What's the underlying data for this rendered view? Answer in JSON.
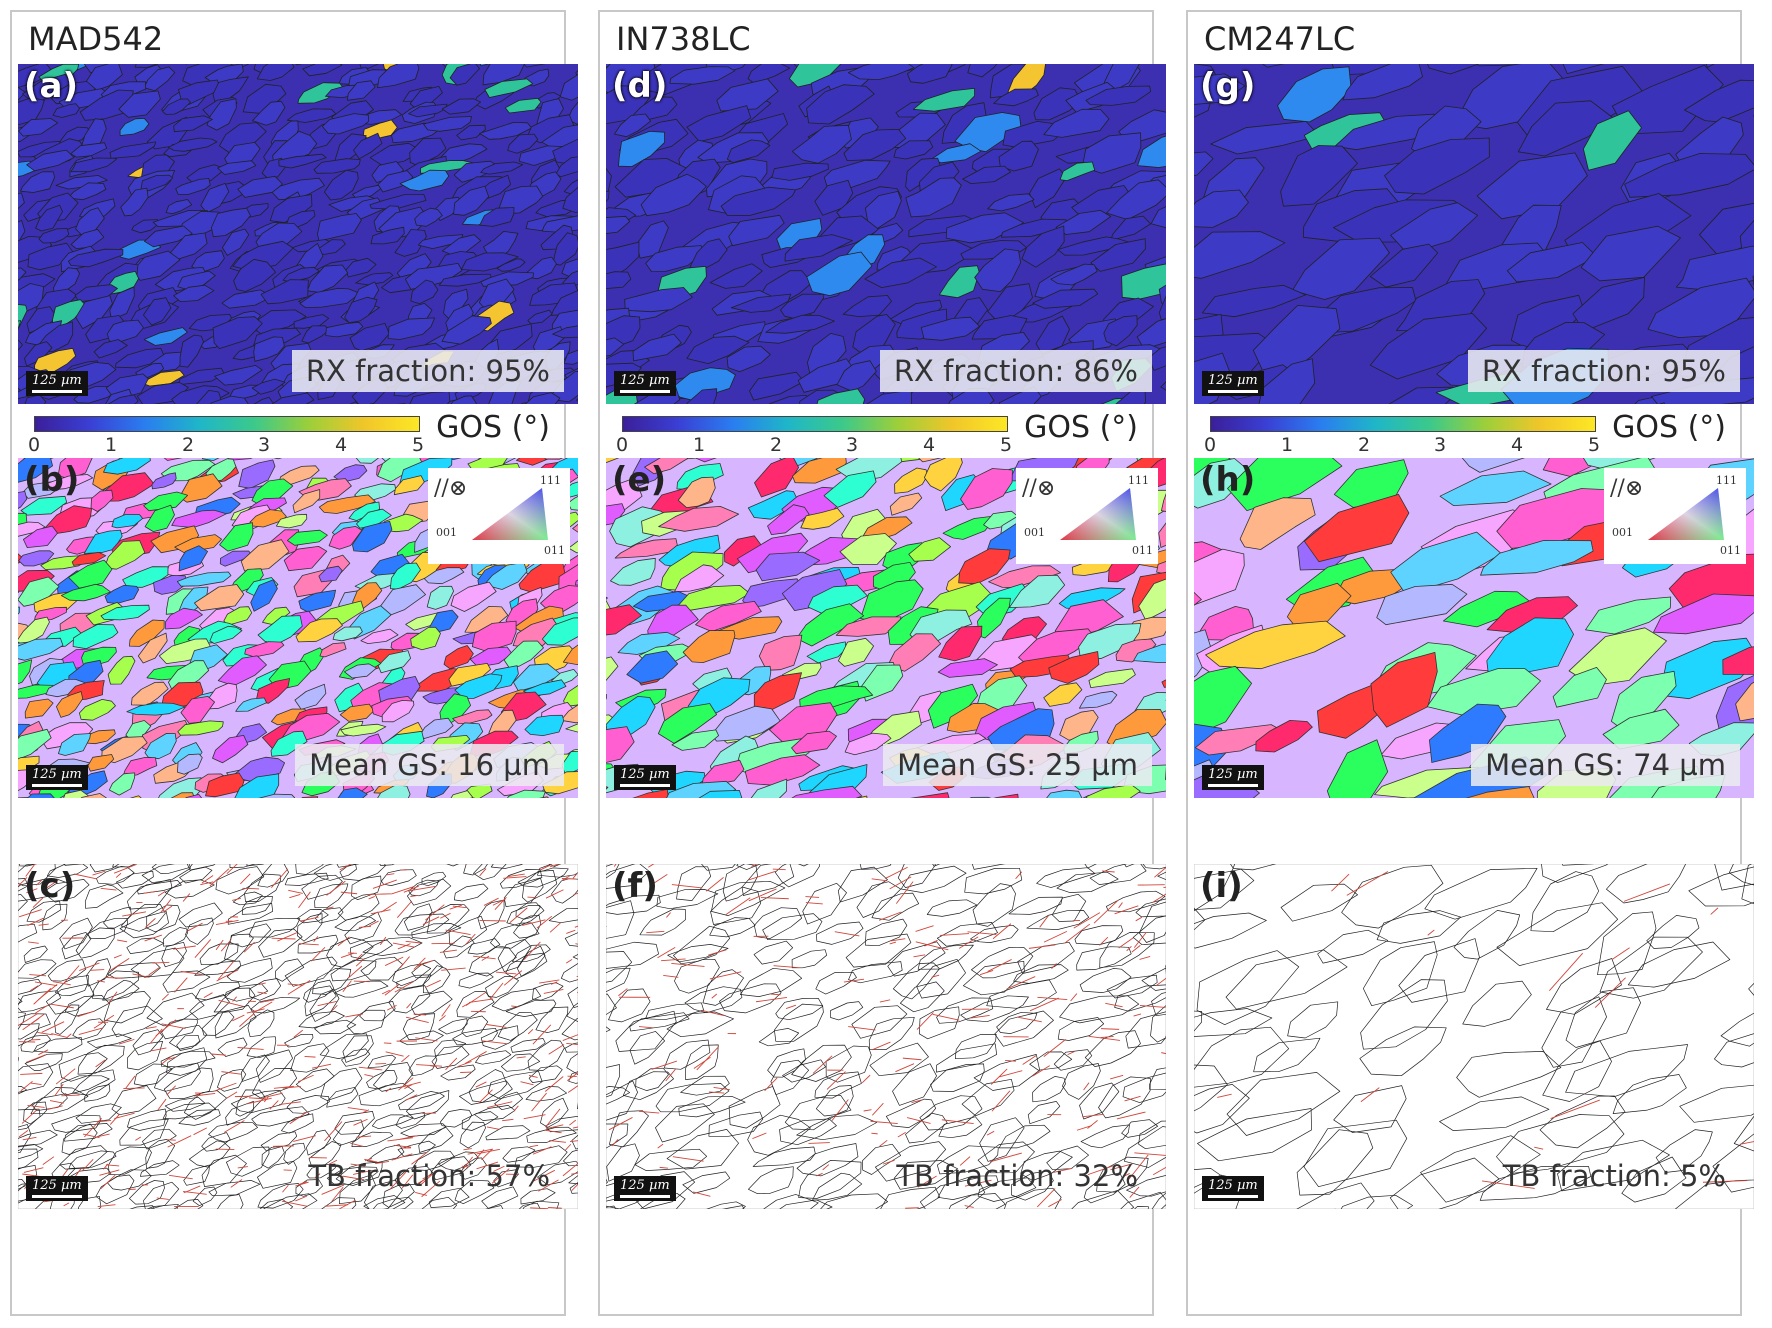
{
  "columns": [
    {
      "title": "MAD542",
      "panels": [
        {
          "label": "(a)",
          "stat": "RX fraction: 95%"
        },
        {
          "label": "(b)",
          "stat": "Mean GS: 16 µm"
        },
        {
          "label": "(c)",
          "stat": "TB fraction: 57%"
        }
      ]
    },
    {
      "title": "IN738LC",
      "panels": [
        {
          "label": "(d)",
          "stat": "RX fraction: 86%"
        },
        {
          "label": "(e)",
          "stat": "Mean GS: 25 µm"
        },
        {
          "label": "(f)",
          "stat": "TB fraction: 32%"
        }
      ]
    },
    {
      "title": "CM247LC",
      "panels": [
        {
          "label": "(g)",
          "stat": "RX fraction: 95%"
        },
        {
          "label": "(h)",
          "stat": "Mean GS: 74 µm"
        },
        {
          "label": "(i)",
          "stat": "TB fraction: 5%"
        }
      ]
    }
  ],
  "scale_bar": "125 µm",
  "colorbar": {
    "ticks": [
      "0",
      "1",
      "2",
      "3",
      "4",
      "5"
    ],
    "label": "GOS (°)",
    "min": 0,
    "max": 5
  },
  "ipf_legend": {
    "symbol": "//⊗",
    "corners": [
      "111",
      "001",
      "011"
    ]
  },
  "colors": {
    "gos_background": "#3c2fb0",
    "grain_boundary": "#222222",
    "twin_boundary": "#d0453a"
  }
}
